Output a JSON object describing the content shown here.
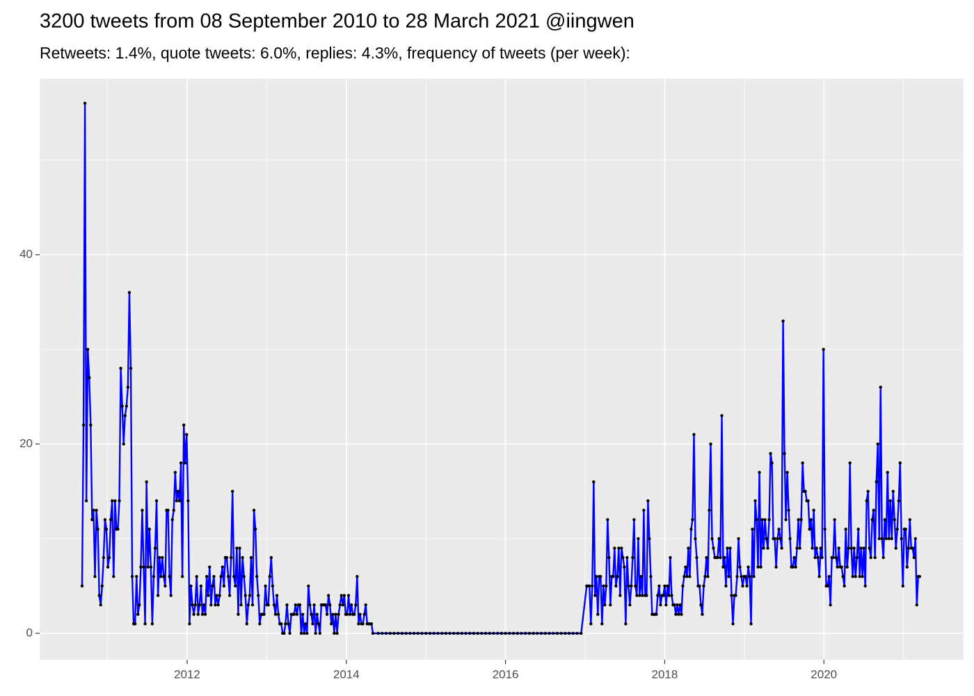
{
  "chart_data": {
    "type": "line",
    "title": "3200 tweets from 08 September 2010 to 28 March 2021 @iingwen",
    "subtitle": "Retweets: 1.4%, quote tweets: 6.0%, replies: 4.3%, frequency of tweets (per week):",
    "x": [
      2010.68,
      2010.698,
      2010.716,
      2010.734,
      2010.752,
      2010.77,
      2010.788,
      2010.806,
      2010.824,
      2010.842,
      2010.86,
      2010.878,
      2010.896,
      2010.914,
      2010.932,
      2010.95,
      2010.968,
      2010.986,
      2011.004,
      2011.022,
      2011.04,
      2011.058,
      2011.076,
      2011.094,
      2011.112,
      2011.13,
      2011.148,
      2011.166,
      2011.184,
      2011.202,
      2011.22,
      2011.238,
      2011.256,
      2011.274,
      2011.292,
      2011.31,
      2011.328,
      2011.346,
      2011.364,
      2011.382,
      2011.4,
      2011.418,
      2011.436,
      2011.454,
      2011.472,
      2011.49,
      2011.508,
      2011.526,
      2011.544,
      2011.562,
      2011.58,
      2011.598,
      2011.616,
      2011.634,
      2011.652,
      2011.67,
      2011.688,
      2011.706,
      2011.724,
      2011.742,
      2011.76,
      2011.778,
      2011.796,
      2011.814,
      2011.832,
      2011.85,
      2011.868,
      2011.886,
      2011.904,
      2011.922,
      2011.94,
      2011.958,
      2011.976,
      2011.994,
      2012.012,
      2012.03,
      2012.048,
      2012.066,
      2012.084,
      2012.102,
      2012.12,
      2012.138,
      2012.156,
      2012.174,
      2012.192,
      2012.21,
      2012.228,
      2012.246,
      2012.264,
      2012.282,
      2012.3,
      2012.318,
      2012.336,
      2012.354,
      2012.372,
      2012.39,
      2012.408,
      2012.426,
      2012.444,
      2012.462,
      2012.48,
      2012.498,
      2012.516,
      2012.534,
      2012.552,
      2012.57,
      2012.588,
      2012.606,
      2012.624,
      2012.642,
      2012.66,
      2012.678,
      2012.696,
      2012.714,
      2012.732,
      2012.75,
      2012.768,
      2012.786,
      2012.804,
      2012.822,
      2012.84,
      2012.858,
      2012.876,
      2012.894,
      2012.912,
      2012.93,
      2012.948,
      2012.966,
      2012.984,
      2013.002,
      2013.02,
      2013.038,
      2013.056,
      2013.074,
      2013.092,
      2013.11,
      2013.128,
      2013.146,
      2013.164,
      2013.182,
      2013.2,
      2013.218,
      2013.236,
      2013.254,
      2013.272,
      2013.29,
      2013.308,
      2013.326,
      2013.344,
      2013.362,
      2013.38,
      2013.398,
      2013.416,
      2013.434,
      2013.452,
      2013.47,
      2013.488,
      2013.506,
      2013.524,
      2013.542,
      2013.56,
      2013.578,
      2013.596,
      2013.614,
      2013.632,
      2013.65,
      2013.668,
      2013.686,
      2013.704,
      2013.722,
      2013.74,
      2013.758,
      2013.776,
      2013.794,
      2013.812,
      2013.83,
      2013.848,
      2013.866,
      2013.884,
      2013.902,
      2013.92,
      2013.938,
      2013.956,
      2013.974,
      2013.992,
      2014.01,
      2014.028,
      2014.046,
      2014.064,
      2014.082,
      2014.1,
      2014.118,
      2014.136,
      2014.154,
      2014.172,
      2014.19,
      2014.208,
      2014.226,
      2014.244,
      2014.262,
      2014.28,
      2014.298,
      2014.316,
      2014.334,
      2014.4,
      2014.45,
      2014.5,
      2014.55,
      2014.6,
      2014.65,
      2014.7,
      2014.75,
      2014.8,
      2014.85,
      2014.9,
      2014.95,
      2015.0,
      2015.05,
      2015.1,
      2015.15,
      2015.2,
      2015.25,
      2015.3,
      2015.35,
      2015.4,
      2015.45,
      2015.5,
      2015.55,
      2015.6,
      2015.65,
      2015.7,
      2015.75,
      2015.8,
      2015.85,
      2015.9,
      2015.95,
      2016.0,
      2016.05,
      2016.1,
      2016.15,
      2016.2,
      2016.25,
      2016.3,
      2016.35,
      2016.4,
      2016.45,
      2016.5,
      2016.55,
      2016.6,
      2016.65,
      2016.7,
      2016.75,
      2016.8,
      2016.85,
      2016.9,
      2016.95,
      2017.02,
      2017.0375,
      2017.055,
      2017.0725,
      2017.09,
      2017.1075,
      2017.125,
      2017.1425,
      2017.16,
      2017.1775,
      2017.195,
      2017.2125,
      2017.23,
      2017.2475,
      2017.265,
      2017.2825,
      2017.3,
      2017.3175,
      2017.335,
      2017.3525,
      2017.37,
      2017.3875,
      2017.405,
      2017.4225,
      2017.44,
      2017.4575,
      2017.475,
      2017.4925,
      2017.51,
      2017.5275,
      2017.545,
      2017.5625,
      2017.58,
      2017.5975,
      2017.615,
      2017.6325,
      2017.65,
      2017.6675,
      2017.685,
      2017.7025,
      2017.72,
      2017.7375,
      2017.755,
      2017.7725,
      2017.79,
      2017.8075,
      2017.825,
      2017.8425,
      2017.86,
      2017.8775,
      2017.895,
      2017.9125,
      2017.93,
      2017.9475,
      2017.965,
      2017.9825,
      2018,
      2018.0175,
      2018.035,
      2018.0525,
      2018.07,
      2018.0875,
      2018.105,
      2018.1225,
      2018.14,
      2018.1575,
      2018.175,
      2018.1925,
      2018.21,
      2018.2275,
      2018.245,
      2018.2625,
      2018.28,
      2018.2975,
      2018.315,
      2018.3325,
      2018.35,
      2018.3675,
      2018.385,
      2018.4025,
      2018.42,
      2018.4375,
      2018.455,
      2018.4725,
      2018.49,
      2018.5075,
      2018.525,
      2018.5425,
      2018.56,
      2018.5775,
      2018.595,
      2018.6125,
      2018.63,
      2018.6475,
      2018.665,
      2018.6825,
      2018.7,
      2018.7175,
      2018.735,
      2018.7525,
      2018.77,
      2018.7875,
      2018.805,
      2018.8225,
      2018.84,
      2018.8575,
      2018.875,
      2018.8925,
      2018.91,
      2018.9275,
      2018.945,
      2018.9625,
      2018.98,
      2018.9975,
      2019.015,
      2019.0325,
      2019.05,
      2019.0675,
      2019.085,
      2019.1025,
      2019.12,
      2019.1375,
      2019.155,
      2019.1725,
      2019.19,
      2019.2075,
      2019.225,
      2019.2425,
      2019.26,
      2019.2775,
      2019.295,
      2019.3125,
      2019.33,
      2019.3475,
      2019.365,
      2019.3825,
      2019.4,
      2019.4175,
      2019.435,
      2019.4525,
      2019.47,
      2019.4875,
      2019.505,
      2019.5225,
      2019.54,
      2019.5575,
      2019.575,
      2019.5925,
      2019.61,
      2019.6275,
      2019.645,
      2019.6625,
      2019.68,
      2019.6975,
      2019.715,
      2019.7325,
      2019.75,
      2019.7675,
      2019.785,
      2019.8025,
      2019.82,
      2019.8375,
      2019.855,
      2019.8725,
      2019.89,
      2019.9075,
      2019.925,
      2019.9425,
      2019.96,
      2019.9775,
      2019.995,
      2020.0125,
      2020.03,
      2020.0475,
      2020.065,
      2020.0825,
      2020.1,
      2020.1175,
      2020.135,
      2020.1525,
      2020.17,
      2020.1875,
      2020.205,
      2020.2225,
      2020.24,
      2020.2575,
      2020.275,
      2020.2925,
      2020.31,
      2020.3275,
      2020.345,
      2020.3625,
      2020.38,
      2020.3975,
      2020.415,
      2020.4325,
      2020.45,
      2020.4675,
      2020.485,
      2020.5025,
      2020.52,
      2020.5375,
      2020.555,
      2020.5725,
      2020.59,
      2020.6075,
      2020.625,
      2020.6425,
      2020.66,
      2020.6775,
      2020.695,
      2020.7125,
      2020.73,
      2020.7475,
      2020.765,
      2020.7825,
      2020.8,
      2020.8175,
      2020.835,
      2020.8525,
      2020.87,
      2020.8875,
      2020.905,
      2020.9225,
      2020.94,
      2020.9575,
      2020.975,
      2020.9925,
      2021.01,
      2021.0275,
      2021.045,
      2021.0625,
      2021.08,
      2021.0975,
      2021.115,
      2021.1325,
      2021.15,
      2021.1675,
      2021.185,
      2021.2025
    ],
    "values": [
      5,
      22,
      56,
      14,
      30,
      27,
      22,
      12,
      13,
      6,
      13,
      11,
      4,
      3,
      5,
      8,
      12,
      11,
      7,
      8,
      12,
      14,
      6,
      14,
      11,
      11,
      14,
      28,
      24,
      20,
      23,
      24,
      26,
      36,
      28,
      6,
      1,
      1,
      6,
      2,
      3,
      7,
      13,
      7,
      1,
      16,
      7,
      11,
      7,
      1,
      6,
      9,
      14,
      4,
      8,
      6,
      8,
      6,
      5,
      13,
      13,
      6,
      4,
      12,
      13,
      17,
      14,
      15,
      14,
      18,
      6,
      22,
      18,
      21,
      14,
      1,
      5,
      3,
      2,
      3,
      6,
      2,
      3,
      5,
      2,
      3,
      2,
      6,
      4,
      7,
      3,
      5,
      6,
      3,
      4,
      3,
      4,
      6,
      7,
      5,
      8,
      8,
      6,
      4,
      8,
      15,
      6,
      5,
      9,
      2,
      9,
      3,
      8,
      6,
      4,
      1,
      3,
      4,
      8,
      3,
      13,
      11,
      6,
      4,
      1,
      2,
      2,
      2,
      5,
      3,
      3,
      6,
      8,
      5,
      3,
      2,
      4,
      2,
      1,
      1,
      0,
      0,
      1,
      3,
      1,
      0,
      2,
      2,
      2,
      3,
      2,
      3,
      3,
      0,
      2,
      0,
      1,
      0,
      5,
      3,
      2,
      1,
      3,
      0,
      2,
      1,
      0,
      3,
      3,
      3,
      3,
      2,
      4,
      3,
      1,
      2,
      0,
      2,
      0,
      2,
      3,
      4,
      3,
      4,
      2,
      2,
      4,
      2,
      3,
      2,
      2,
      3,
      6,
      1,
      2,
      1,
      1,
      2,
      3,
      1,
      1,
      1,
      1,
      0,
      0,
      0,
      0,
      0,
      0,
      0,
      0,
      0,
      0,
      0,
      0,
      0,
      0,
      0,
      0,
      0,
      0,
      0,
      0,
      0,
      0,
      0,
      0,
      0,
      0,
      0,
      0,
      0,
      0,
      0,
      0,
      0,
      0,
      0,
      0,
      0,
      0,
      0,
      0,
      0,
      0,
      0,
      0,
      0,
      0,
      0,
      0,
      0,
      0,
      0,
      0,
      0,
      5,
      5,
      5,
      1,
      5,
      16,
      4,
      6,
      2,
      6,
      6,
      1,
      5,
      3,
      5,
      12,
      8,
      3,
      6,
      6,
      9,
      5,
      6,
      9,
      4,
      9,
      8,
      7,
      1,
      8,
      5,
      3,
      5,
      8,
      12,
      5,
      4,
      10,
      4,
      6,
      4,
      13,
      4,
      4,
      14,
      10,
      6,
      2,
      2,
      2,
      2,
      4,
      5,
      3,
      4,
      4,
      5,
      3,
      5,
      4,
      8,
      4,
      3,
      3,
      2,
      3,
      2,
      3,
      2,
      5,
      6,
      7,
      6,
      9,
      6,
      11,
      12,
      21,
      10,
      8,
      5,
      5,
      3,
      2,
      5,
      6,
      8,
      6,
      13,
      20,
      10,
      9,
      8,
      8,
      8,
      10,
      8,
      23,
      7,
      8,
      5,
      9,
      6,
      9,
      4,
      1,
      4,
      4,
      6,
      10,
      7,
      6,
      5,
      6,
      6,
      5,
      7,
      6,
      1,
      11,
      6,
      14,
      12,
      7,
      17,
      7,
      12,
      9,
      12,
      10,
      9,
      12,
      19,
      18,
      10,
      10,
      7,
      10,
      11,
      10,
      9,
      33,
      19,
      12,
      17,
      13,
      10,
      7,
      7,
      8,
      7,
      9,
      12,
      9,
      12,
      18,
      15,
      15,
      14,
      14,
      11,
      12,
      9,
      13,
      8,
      9,
      8,
      6,
      9,
      8,
      30,
      11,
      5,
      5,
      6,
      3,
      8,
      8,
      12,
      8,
      7,
      9,
      7,
      7,
      6,
      5,
      11,
      7,
      9,
      18,
      9,
      6,
      9,
      6,
      8,
      11,
      6,
      9,
      6,
      9,
      5,
      14,
      15,
      9,
      8,
      12,
      13,
      8,
      16,
      20,
      10,
      26,
      10,
      8,
      12,
      10,
      17,
      10,
      14,
      10,
      15,
      12,
      9,
      11,
      14,
      18,
      10,
      5,
      11,
      11,
      7,
      9,
      12,
      9,
      9,
      8,
      10,
      3,
      6,
      6
    ],
    "xlim": [
      2010.147,
      2021.755
    ],
    "ylim": [
      -2.8,
      58.6
    ],
    "xticks": [
      2012,
      2014,
      2016,
      2018,
      2020
    ],
    "yticks": [
      0,
      20,
      40
    ],
    "x_minor_ticks": [
      2011,
      2013,
      2015,
      2017,
      2019,
      2021
    ],
    "y_minor_ticks": [
      10,
      30,
      50
    ],
    "grid": true,
    "panel_color": "#ebebeb",
    "line_color": "#0000ff",
    "point_color": "#000000"
  }
}
